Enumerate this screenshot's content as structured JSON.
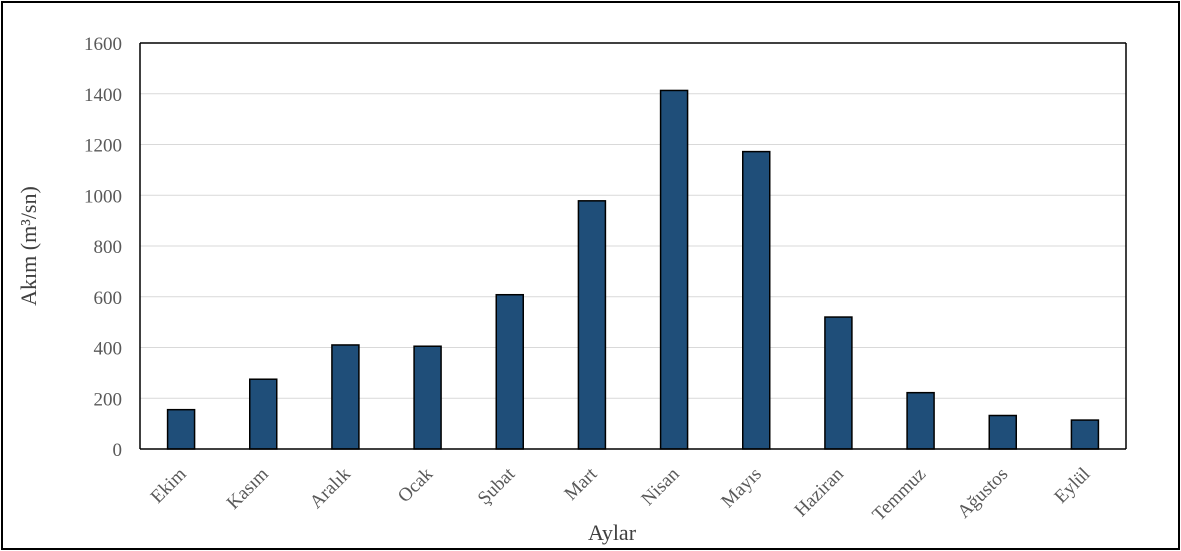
{
  "chart_data": {
    "type": "bar",
    "title": "",
    "xlabel": "Aylar",
    "ylabel": "Akım (m³/sn)",
    "categories": [
      "Ekim",
      "Kasım",
      "Aralık",
      "Ocak",
      "Şubat",
      "Mart",
      "Nisan",
      "Mayıs",
      "Haziran",
      "Temmuz",
      "Ağustos",
      "Eylül"
    ],
    "values": [
      155,
      275,
      410,
      405,
      608,
      978,
      1413,
      1172,
      520,
      222,
      132,
      114
    ],
    "ylim": [
      0,
      1600
    ],
    "yticks": [
      0,
      200,
      400,
      600,
      800,
      1000,
      1200,
      1400,
      1600
    ],
    "grid": true,
    "legend": "none",
    "colors": {
      "bar_fill": "#1f4e79",
      "bar_stroke": "#000000",
      "grid": "#d9d9d9",
      "axis": "#000000"
    }
  }
}
